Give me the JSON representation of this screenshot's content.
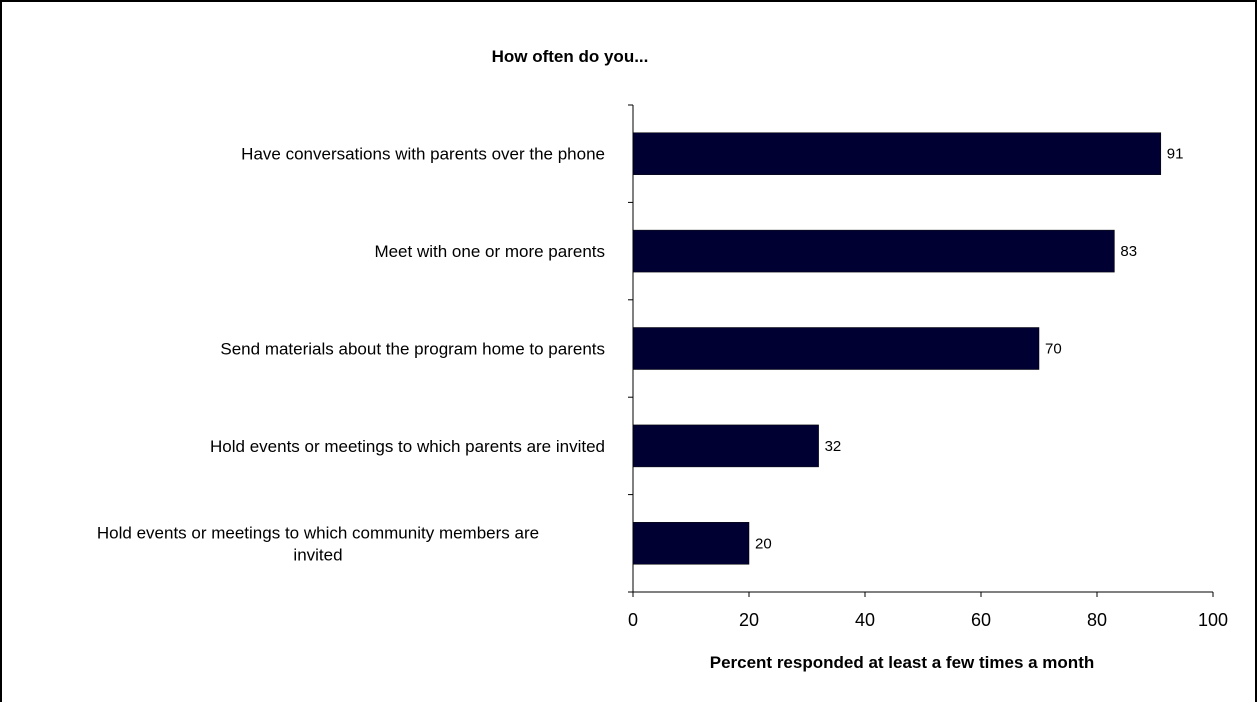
{
  "chart_data": {
    "type": "bar",
    "orientation": "horizontal",
    "title": "How often do you...",
    "xlabel": "Percent responded at least a few times a month",
    "ylabel": "",
    "categories": [
      "Have conversations with parents over the phone",
      "Meet with one or more parents",
      "Send materials about the program home to parents",
      "Hold events or meetings to which parents are invited",
      "Hold events or meetings to which community members are invited"
    ],
    "category_lines": [
      [
        "Have conversations with parents over the phone"
      ],
      [
        "Meet with one or more parents"
      ],
      [
        "Send materials about the program home to parents"
      ],
      [
        "Hold events or meetings to which parents are invited"
      ],
      [
        "Hold events or meetings to which community members are",
        "invited"
      ]
    ],
    "values": [
      91,
      83,
      70,
      32,
      20
    ],
    "data_labels": [
      "91",
      "83",
      "70",
      "32",
      "20"
    ],
    "xlim": [
      0,
      100
    ],
    "xticks": [
      0,
      20,
      40,
      60,
      80,
      100
    ],
    "xtick_labels": [
      "0",
      "20",
      "40",
      "60",
      "80",
      "100"
    ],
    "bar_color": "#000033",
    "grid": false,
    "legend": "none"
  }
}
